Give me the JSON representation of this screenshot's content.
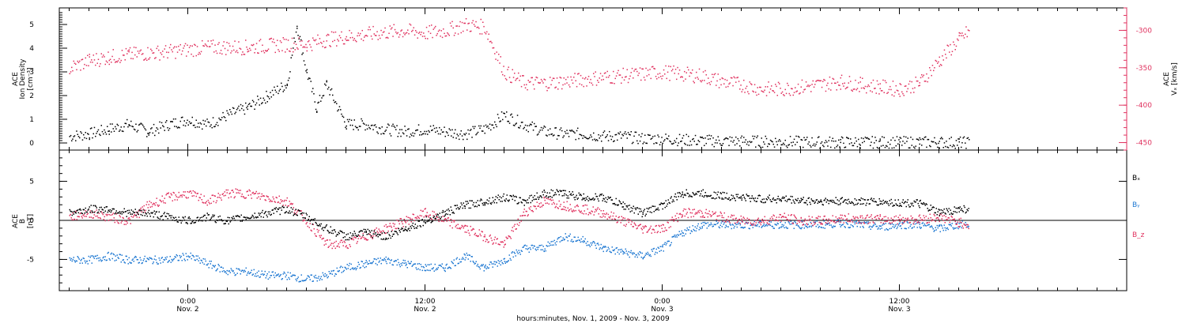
{
  "chart_data": [
    {
      "type": "scatter",
      "panel": "top",
      "ylabel_left": [
        "ACE",
        "Ion Density",
        "[cm⁻³]"
      ],
      "ylabel_right": [
        "ACE",
        "Vₓ [km/s]"
      ],
      "ylim_left": [
        -0.3,
        5.7
      ],
      "ylim_right": [
        -460,
        -270
      ],
      "yticks_left": [
        "0",
        "1",
        "2",
        "3",
        "4",
        "5"
      ],
      "yticks_right": [
        "-300",
        "-350",
        "-400",
        "-450"
      ],
      "series": [
        {
          "name": "Ion Density",
          "axis": "left",
          "color": "#000000",
          "x_hours": [
            -6,
            -5,
            -4,
            -3,
            -2,
            -1,
            0,
            1,
            2,
            3,
            4,
            5,
            5.5,
            6,
            6.5,
            7,
            8,
            9,
            10,
            11,
            12,
            13,
            14,
            15,
            16,
            17,
            18,
            19,
            20,
            21,
            22,
            23,
            24,
            25,
            26,
            27,
            28,
            29,
            30,
            31,
            32,
            33,
            34,
            35,
            36,
            37,
            38,
            39,
            39.5
          ],
          "values": [
            0.3,
            0.4,
            0.6,
            0.8,
            0.5,
            0.8,
            1.0,
            0.8,
            1.2,
            1.5,
            2.0,
            2.5,
            5.0,
            3.0,
            1.5,
            2.5,
            0.8,
            0.8,
            0.6,
            0.5,
            0.6,
            0.5,
            0.4,
            0.6,
            1.2,
            0.8,
            0.5,
            0.4,
            0.4,
            0.3,
            0.3,
            0.2,
            0.2,
            0.15,
            0.12,
            0.1,
            0.1,
            0.08,
            0.08,
            0.06,
            0.05,
            0.05,
            0.05,
            0.05,
            0.05,
            0.05,
            0.05,
            0.04,
            0.04
          ]
        },
        {
          "name": "Vx",
          "axis": "right",
          "color": "#e0325f",
          "x_hours": [
            -6,
            -5,
            -4,
            -3,
            -2,
            -1,
            0,
            1,
            2,
            3,
            4,
            5,
            6,
            7,
            8,
            9,
            10,
            11,
            12,
            13,
            14,
            15,
            16,
            17,
            18,
            19,
            20,
            21,
            22,
            23,
            24,
            25,
            26,
            27,
            28,
            29,
            30,
            31,
            32,
            33,
            34,
            35,
            36,
            37,
            38,
            39,
            39.5
          ],
          "values": [
            -350,
            -340,
            -335,
            -332,
            -330,
            -328,
            -325,
            -322,
            -322,
            -322,
            -320,
            -318,
            -318,
            -312,
            -308,
            -305,
            -302,
            -300,
            -303,
            -300,
            -292,
            -295,
            -355,
            -370,
            -370,
            -368,
            -365,
            -362,
            -360,
            -358,
            -355,
            -358,
            -360,
            -368,
            -372,
            -378,
            -378,
            -375,
            -372,
            -368,
            -372,
            -375,
            -378,
            -370,
            -340,
            -312,
            -300
          ]
        }
      ]
    },
    {
      "type": "scatter",
      "panel": "bottom",
      "ylabel_left": [
        "ACE",
        "B",
        "[nT]"
      ],
      "ylim": [
        -9,
        9
      ],
      "yticks": [
        "5",
        "0",
        "-5"
      ],
      "series": [
        {
          "name": "Bₓ",
          "color": "#000000",
          "x_hours": [
            -6,
            -5,
            -4,
            -3,
            -2,
            -1,
            0,
            1,
            2,
            3,
            4,
            5,
            6,
            7,
            8,
            9,
            10,
            11,
            12,
            13,
            14,
            15,
            16,
            17,
            18,
            19,
            20,
            21,
            22,
            23,
            24,
            25,
            26,
            27,
            28,
            29,
            30,
            31,
            32,
            33,
            34,
            35,
            36,
            37,
            38,
            39,
            39.5
          ],
          "values": [
            1.0,
            1.5,
            1.5,
            1.0,
            1.0,
            0.5,
            0.0,
            0.5,
            0.0,
            0.5,
            1.0,
            1.5,
            0.5,
            -1.0,
            -2.0,
            -1.5,
            -2.0,
            -1.0,
            0.0,
            1.0,
            2.0,
            2.5,
            3.0,
            2.5,
            3.5,
            3.5,
            3.0,
            3.0,
            2.0,
            1.0,
            2.0,
            3.5,
            3.5,
            3.2,
            3.0,
            2.8,
            2.8,
            2.6,
            2.5,
            2.5,
            2.5,
            2.4,
            2.3,
            2.2,
            1.0,
            1.5,
            1.5
          ]
        },
        {
          "name": "Bᵧ",
          "color": "#1e78d2",
          "x_hours": [
            -6,
            -5,
            -4,
            -3,
            -2,
            -1,
            0,
            1,
            2,
            3,
            4,
            5,
            6,
            7,
            8,
            9,
            10,
            11,
            12,
            13,
            14,
            15,
            16,
            17,
            18,
            19,
            20,
            21,
            22,
            23,
            24,
            25,
            26,
            27,
            28,
            29,
            30,
            31,
            32,
            33,
            34,
            35,
            36,
            37,
            38,
            39,
            39.5
          ],
          "values": [
            -5.0,
            -5.0,
            -4.5,
            -5.0,
            -5.0,
            -5.0,
            -4.5,
            -5.5,
            -6.5,
            -6.5,
            -7.0,
            -7.0,
            -7.5,
            -7.0,
            -6.0,
            -5.5,
            -5.0,
            -5.5,
            -6.0,
            -6.0,
            -4.5,
            -6.0,
            -5.0,
            -3.5,
            -3.5,
            -2.0,
            -2.5,
            -3.5,
            -4.0,
            -4.5,
            -3.5,
            -1.5,
            -0.5,
            -0.5,
            -0.5,
            -0.5,
            -0.5,
            -0.5,
            -0.5,
            -0.3,
            -0.5,
            -0.8,
            -0.5,
            -0.5,
            -1.0,
            -0.5,
            -0.5
          ]
        },
        {
          "name": "B_z",
          "color": "#e0325f",
          "x_hours": [
            -6,
            -5,
            -4,
            -3,
            -2,
            -1,
            0,
            1,
            2,
            3,
            4,
            5,
            6,
            7,
            8,
            9,
            10,
            11,
            12,
            13,
            14,
            15,
            16,
            17,
            18,
            19,
            20,
            21,
            22,
            23,
            24,
            25,
            26,
            27,
            28,
            29,
            30,
            31,
            32,
            33,
            34,
            35,
            36,
            37,
            38,
            39,
            39.5
          ],
          "values": [
            0.5,
            1.0,
            0.5,
            0.0,
            2.0,
            3.0,
            3.5,
            2.5,
            3.5,
            3.5,
            3.0,
            2.5,
            0.0,
            -3.0,
            -3.0,
            -2.0,
            -1.0,
            0.0,
            1.0,
            0.0,
            -1.0,
            -2.0,
            -3.0,
            1.0,
            2.5,
            2.0,
            1.5,
            1.0,
            0.0,
            -1.0,
            -1.0,
            1.0,
            1.0,
            0.5,
            0.0,
            0.0,
            0.5,
            0.0,
            0.0,
            0.3,
            0.3,
            0.2,
            0.2,
            0.2,
            0.5,
            -0.2,
            -0.5
          ]
        }
      ]
    }
  ],
  "x_axis": {
    "ticks": [
      {
        "hours": 0,
        "line1": "0:00",
        "line2": "Nov. 2"
      },
      {
        "hours": 12,
        "line1": "12:00",
        "line2": "Nov. 2"
      },
      {
        "hours": 24,
        "line1": "0:00",
        "line2": "Nov. 3"
      },
      {
        "hours": 36,
        "line1": "12:00",
        "line2": "Nov. 3"
      }
    ],
    "xlim_hours": [
      -6.5,
      47.5
    ],
    "xlabel": "hours:minutes, Nov.  1, 2009 - Nov.  3, 2009"
  }
}
